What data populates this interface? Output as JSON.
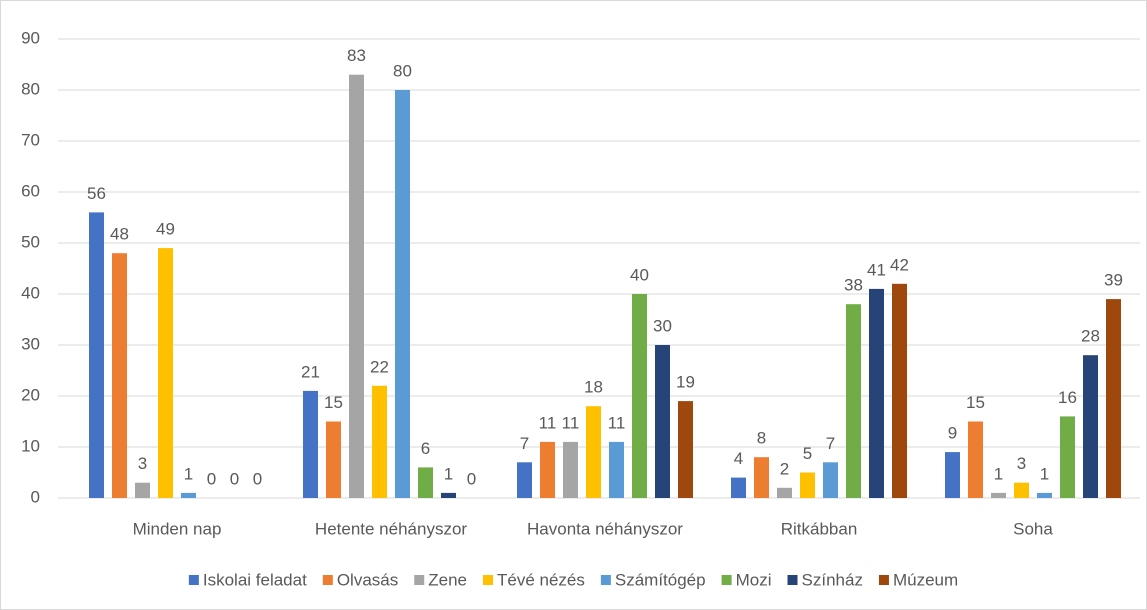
{
  "chart_data": {
    "type": "bar",
    "categories": [
      "Minden nap",
      "Hetente néhányszor",
      "Havonta néhányszor",
      "Ritkábban",
      "Soha"
    ],
    "series": [
      {
        "name": "Iskolai feladat",
        "color": "#4472c4",
        "values": [
          56,
          21,
          7,
          4,
          9
        ]
      },
      {
        "name": "Olvasás",
        "color": "#ed7d31",
        "values": [
          48,
          15,
          11,
          8,
          15
        ]
      },
      {
        "name": "Zene",
        "color": "#a5a5a5",
        "values": [
          3,
          83,
          11,
          2,
          1
        ]
      },
      {
        "name": "Tévé nézés",
        "color": "#ffc000",
        "values": [
          49,
          22,
          18,
          5,
          3
        ]
      },
      {
        "name": "Számítógép",
        "color": "#5b9bd5",
        "values": [
          1,
          80,
          11,
          7,
          1
        ]
      },
      {
        "name": "Mozi",
        "color": "#70ad47",
        "values": [
          0,
          6,
          40,
          38,
          16
        ]
      },
      {
        "name": "Színház",
        "color": "#264478",
        "values": [
          0,
          1,
          30,
          41,
          28
        ]
      },
      {
        "name": "Múzeum",
        "color": "#9e480e",
        "values": [
          0,
          0,
          19,
          42,
          39
        ]
      }
    ],
    "ylim": [
      0,
      90
    ],
    "yticks": [
      0,
      10,
      20,
      30,
      40,
      50,
      60,
      70,
      80,
      90
    ],
    "grid": true,
    "legend": "bottom",
    "data_labels": true
  }
}
